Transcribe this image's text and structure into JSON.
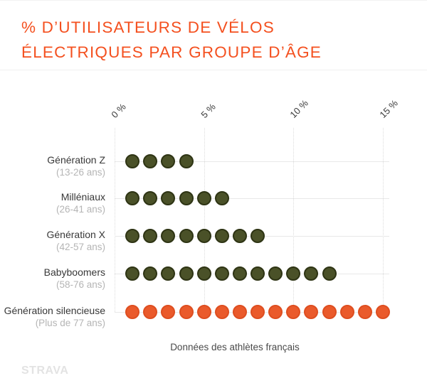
{
  "title": {
    "line1": "% D’UTILISATEURS DE VÉLOS",
    "line2": "ÉLECTRIQUES PAR GROUPE D’ÂGE"
  },
  "chart_data": {
    "type": "bar",
    "style": "unit-dot-plot",
    "orientation": "horizontal",
    "categories": [
      "Génération Z",
      "Milléniaux",
      "Génération X",
      "Babyboomers",
      "Génération silencieuse"
    ],
    "category_sublabels": [
      "(13-26 ans)",
      "(26-41 ans)",
      "(42-57 ans)",
      "(58-76 ans)",
      "(Plus de 77 ans)"
    ],
    "values": [
      4,
      6,
      8,
      12,
      15
    ],
    "unit": "%",
    "dot_value": 1,
    "x_ticks": [
      "0 %",
      "5 %",
      "10 %",
      "15 %"
    ],
    "x_tick_values": [
      0,
      5,
      10,
      15
    ],
    "xlim": [
      0,
      15.3
    ],
    "grid": "vertical-dotted",
    "row_dot_fill": [
      "#4A5128",
      "#4A5128",
      "#4A5128",
      "#4A5128",
      "#EA5A2B"
    ],
    "row_dot_border": [
      "#2E3414",
      "#2E3414",
      "#2E3414",
      "#2E3414",
      "#DE4E20"
    ],
    "caption": "Données des athlètes français"
  },
  "colors": {
    "title": "#F4501F",
    "olive_dot": "#4A5128",
    "orange_dot": "#EA5A2B",
    "label_text": "#383838",
    "sublabel_text": "#B5B5B5",
    "gridline": "#DCDCDC",
    "row_line": "#E8E8E8",
    "watermark": "#E3E3E3"
  },
  "watermark": "STRAVA"
}
